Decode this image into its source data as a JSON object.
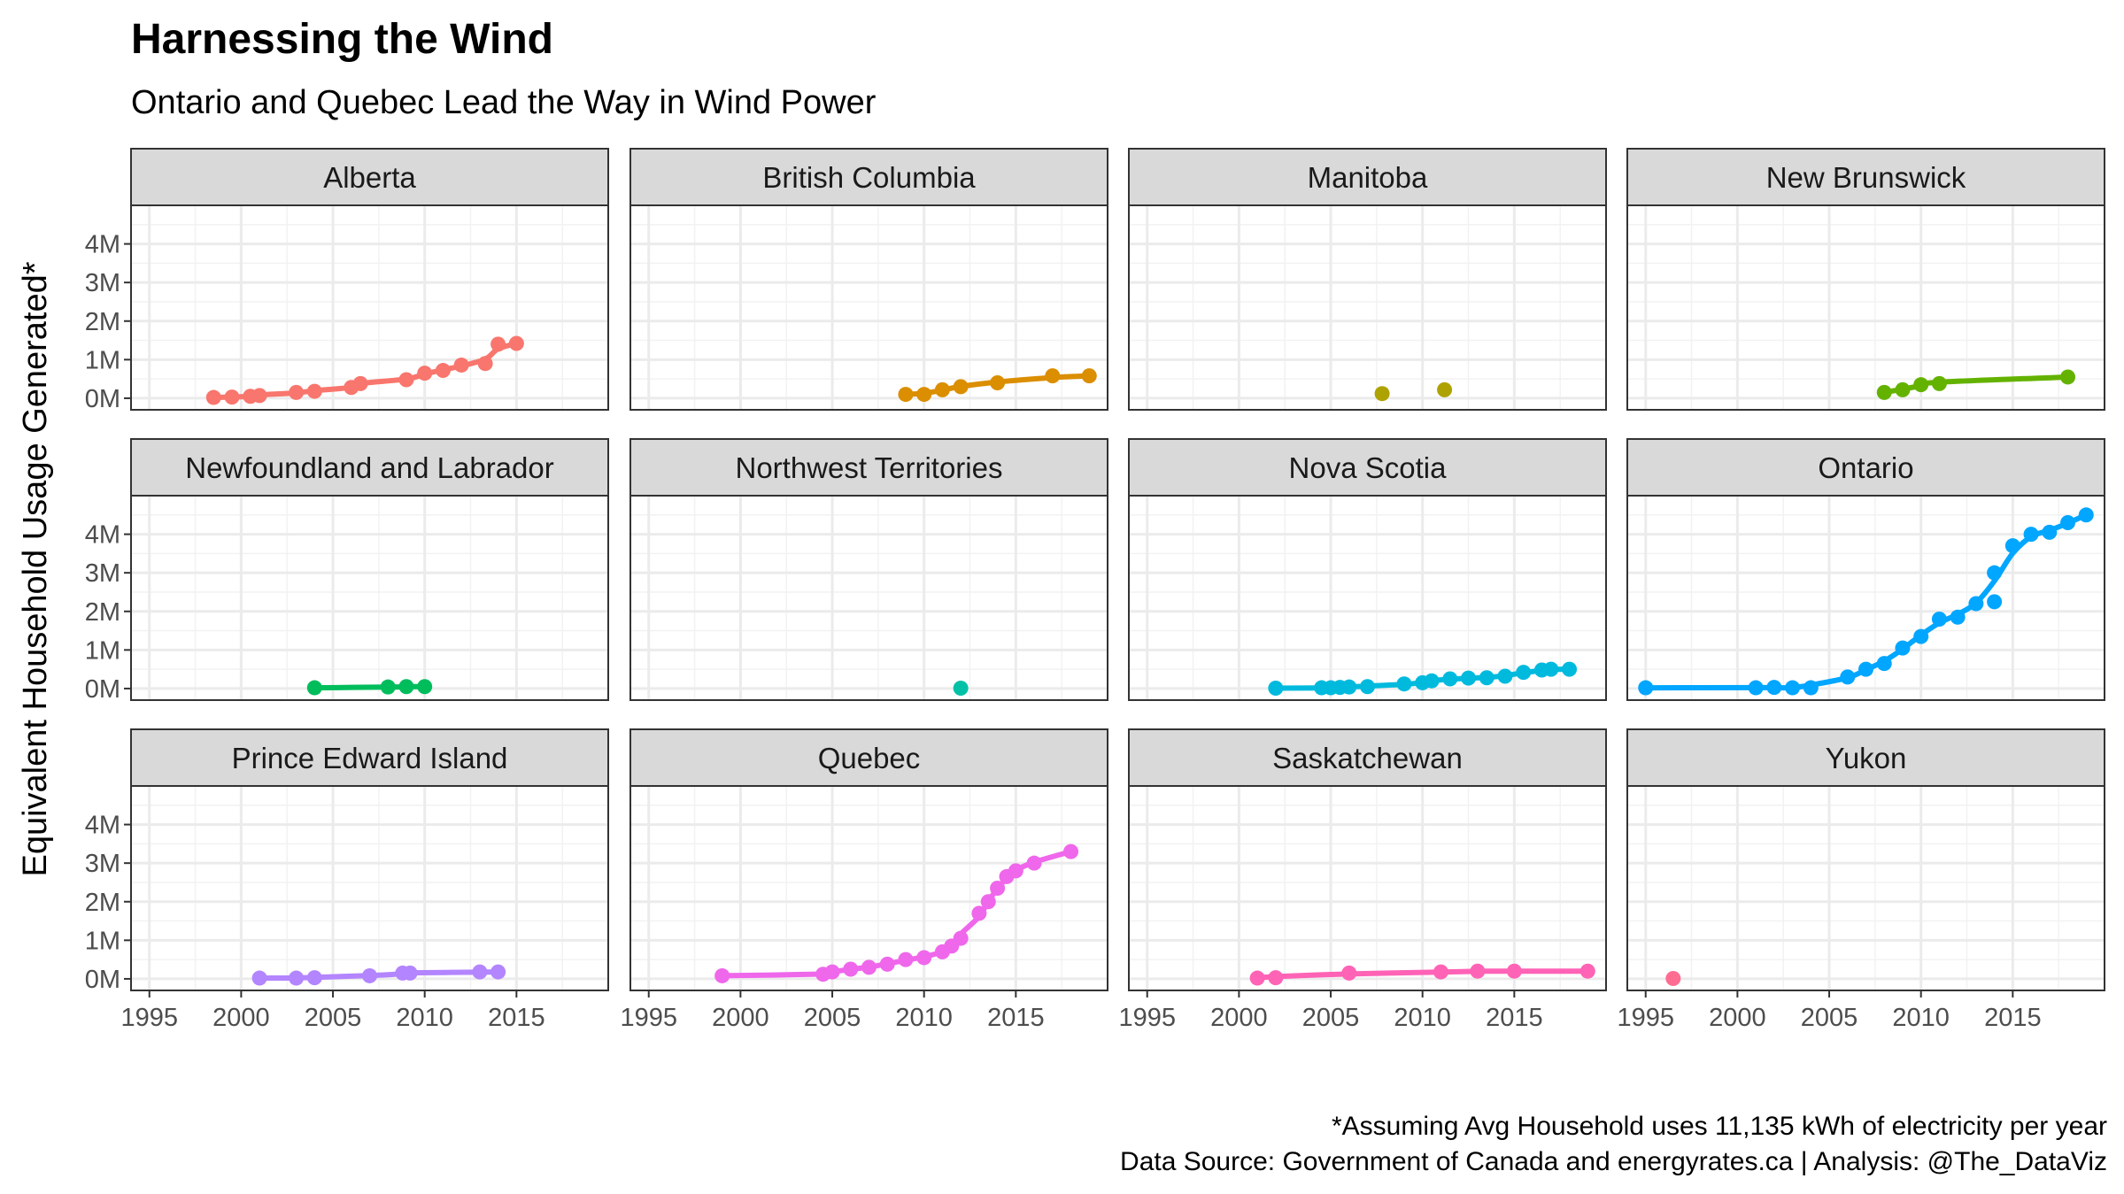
{
  "chart_data": {
    "type": "scatter",
    "title": "Harnessing the Wind",
    "subtitle": "Ontario and Quebec Lead the Way in Wind Power",
    "ylabel": "Equivalent Household Usage Generated*",
    "xlabel": "",
    "x_ticks": [
      "1995",
      "2000",
      "2005",
      "2010",
      "2015"
    ],
    "y_ticks": [
      "0M",
      "1M",
      "2M",
      "3M",
      "4M"
    ],
    "xlim": [
      1994,
      2020
    ],
    "ylim": [
      -0.3,
      5.0
    ],
    "y_unit": "millions of households",
    "grid": true,
    "legend": "none",
    "caption_lines": [
      "*Assuming Avg Household uses 11,135 kWh of electricity per year",
      "Data Source: Government of Canada and energyrates.ca | Analysis: @The_DataViz"
    ],
    "panels": [
      {
        "name": "Alberta",
        "color": "#F8766D",
        "trend": true,
        "points": [
          [
            1998.5,
            0.02
          ],
          [
            1999.5,
            0.03
          ],
          [
            2000.5,
            0.05
          ],
          [
            2001,
            0.07
          ],
          [
            2003,
            0.15
          ],
          [
            2004,
            0.18
          ],
          [
            2006,
            0.28
          ],
          [
            2006.5,
            0.38
          ],
          [
            2009,
            0.48
          ],
          [
            2010,
            0.65
          ],
          [
            2011,
            0.72
          ],
          [
            2012,
            0.86
          ],
          [
            2013.3,
            0.9
          ],
          [
            2014,
            1.4
          ],
          [
            2015,
            1.42
          ]
        ]
      },
      {
        "name": "British Columbia",
        "color": "#DB8E00",
        "trend": true,
        "points": [
          [
            2009,
            0.1
          ],
          [
            2010,
            0.1
          ],
          [
            2011,
            0.22
          ],
          [
            2012,
            0.3
          ],
          [
            2014,
            0.4
          ],
          [
            2017,
            0.58
          ],
          [
            2019,
            0.58
          ]
        ]
      },
      {
        "name": "Manitoba",
        "color": "#AEA200",
        "trend": false,
        "points": [
          [
            2007.8,
            0.12
          ],
          [
            2011.2,
            0.22
          ]
        ]
      },
      {
        "name": "New Brunswick",
        "color": "#64B200",
        "trend": true,
        "points": [
          [
            2008,
            0.15
          ],
          [
            2009,
            0.22
          ],
          [
            2010,
            0.35
          ],
          [
            2011,
            0.38
          ],
          [
            2018,
            0.55
          ]
        ]
      },
      {
        "name": "Newfoundland and Labrador",
        "color": "#00BD5C",
        "trend": true,
        "points": [
          [
            2004,
            0.02
          ],
          [
            2008,
            0.04
          ],
          [
            2009,
            0.05
          ],
          [
            2010,
            0.05
          ]
        ]
      },
      {
        "name": "Northwest Territories",
        "color": "#00C1A7",
        "trend": false,
        "points": [
          [
            2012,
            0.01
          ]
        ]
      },
      {
        "name": "Nova Scotia",
        "color": "#00BADE",
        "trend": true,
        "points": [
          [
            2002,
            0.01
          ],
          [
            2004.5,
            0.02
          ],
          [
            2005,
            0.02
          ],
          [
            2005.5,
            0.03
          ],
          [
            2006,
            0.04
          ],
          [
            2007,
            0.05
          ],
          [
            2009,
            0.12
          ],
          [
            2010,
            0.15
          ],
          [
            2010.5,
            0.2
          ],
          [
            2011.5,
            0.25
          ],
          [
            2012.5,
            0.27
          ],
          [
            2013.5,
            0.28
          ],
          [
            2014.5,
            0.32
          ],
          [
            2015.5,
            0.42
          ],
          [
            2016.5,
            0.48
          ],
          [
            2017,
            0.5
          ],
          [
            2018,
            0.5
          ]
        ]
      },
      {
        "name": "Ontario",
        "color": "#00A6FF",
        "trend": true,
        "points": [
          [
            1995,
            0.02
          ],
          [
            2001,
            0.02
          ],
          [
            2002,
            0.03
          ],
          [
            2003,
            0.02
          ],
          [
            2004,
            0.02
          ],
          [
            2006,
            0.3
          ],
          [
            2007,
            0.5
          ],
          [
            2008,
            0.65
          ],
          [
            2009,
            1.05
          ],
          [
            2010,
            1.35
          ],
          [
            2011,
            1.8
          ],
          [
            2012,
            1.85
          ],
          [
            2013,
            2.2
          ],
          [
            2014,
            2.25
          ],
          [
            2014,
            3.0
          ],
          [
            2015,
            3.7
          ],
          [
            2016,
            4.0
          ],
          [
            2017,
            4.05
          ],
          [
            2018,
            4.3
          ],
          [
            2019,
            4.5
          ]
        ]
      },
      {
        "name": "Prince Edward Island",
        "color": "#B385FF",
        "trend": true,
        "points": [
          [
            2001,
            0.02
          ],
          [
            2003,
            0.02
          ],
          [
            2004,
            0.03
          ],
          [
            2007,
            0.08
          ],
          [
            2008.8,
            0.15
          ],
          [
            2009.2,
            0.15
          ],
          [
            2013,
            0.18
          ],
          [
            2014,
            0.18
          ]
        ]
      },
      {
        "name": "Quebec",
        "color": "#EF67EB",
        "trend": true,
        "points": [
          [
            1999,
            0.08
          ],
          [
            2004.5,
            0.12
          ],
          [
            2005,
            0.18
          ],
          [
            2006,
            0.25
          ],
          [
            2007,
            0.3
          ],
          [
            2008,
            0.38
          ],
          [
            2009,
            0.5
          ],
          [
            2010,
            0.55
          ],
          [
            2011,
            0.7
          ],
          [
            2011.5,
            0.85
          ],
          [
            2012,
            1.05
          ],
          [
            2013,
            1.7
          ],
          [
            2013.5,
            2.0
          ],
          [
            2014,
            2.35
          ],
          [
            2014.5,
            2.65
          ],
          [
            2015,
            2.8
          ],
          [
            2016,
            3.0
          ],
          [
            2018,
            3.3
          ]
        ]
      },
      {
        "name": "Saskatchewan",
        "color": "#FF63B6",
        "trend": true,
        "points": [
          [
            2001,
            0.02
          ],
          [
            2002,
            0.03
          ],
          [
            2006,
            0.15
          ],
          [
            2011,
            0.18
          ],
          [
            2013,
            0.2
          ],
          [
            2015,
            0.2
          ],
          [
            2019,
            0.2
          ]
        ]
      },
      {
        "name": "Yukon",
        "color": "#FF6C91",
        "trend": false,
        "points": [
          [
            1996.5,
            0.01
          ]
        ]
      }
    ]
  }
}
